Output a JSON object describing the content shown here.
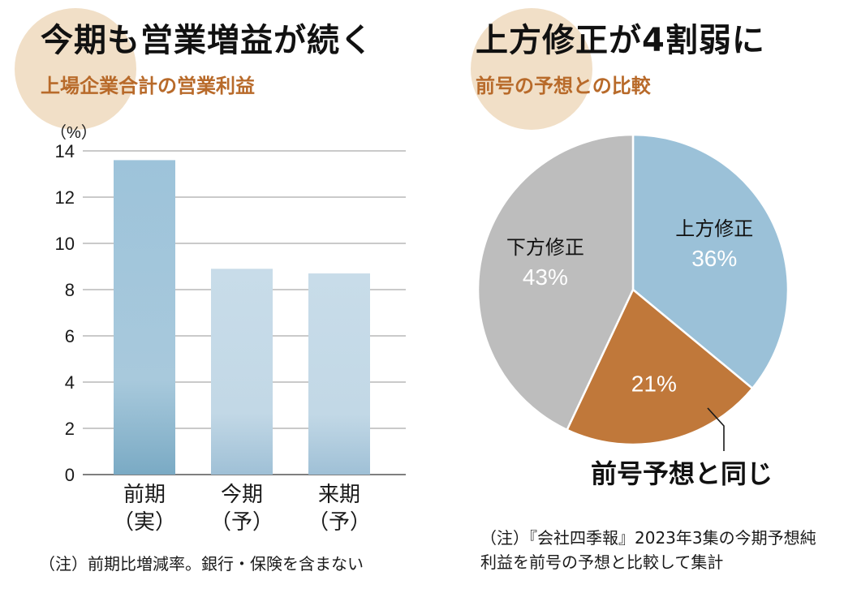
{
  "left": {
    "title": "今期も営業増益が続く",
    "subtitle": "上場企業合計の営業利益",
    "note": "（注）前期比増減率。銀行・保険を含まない"
  },
  "right": {
    "title": "上方修正が4割弱に",
    "subtitle": "前号の予想との比較",
    "note": "（注）『会社四季報』2023年3集の今期予想純利益を前号の予想と比較して集計"
  },
  "chart_data": [
    {
      "type": "bar",
      "unit_label": "（%）",
      "categories": [
        {
          "line1": "前期",
          "line2": "（実）"
        },
        {
          "line1": "今期",
          "line2": "（予）"
        },
        {
          "line1": "来期",
          "line2": "（予）"
        }
      ],
      "values": [
        13.6,
        8.9,
        8.7
      ],
      "ylim": [
        0,
        14
      ],
      "yticks": [
        0,
        2,
        4,
        6,
        8,
        10,
        12,
        14
      ],
      "grid": true,
      "colors": [
        "#9bc1d8",
        "#c5dae8",
        "#c5dae8"
      ]
    },
    {
      "type": "pie",
      "slices": [
        {
          "label": "上方修正",
          "value": 36,
          "value_label": "36%",
          "color": "#9bc1d8"
        },
        {
          "label": "",
          "value": 21,
          "value_label": "21%",
          "color": "#c0783a"
        },
        {
          "label": "下方修正",
          "value": 43,
          "value_label": "43%",
          "color": "#bdbdbd"
        }
      ],
      "callout": "前号予想と同じ",
      "start_angle": "12 o'clock",
      "direction": "clockwise"
    }
  ]
}
